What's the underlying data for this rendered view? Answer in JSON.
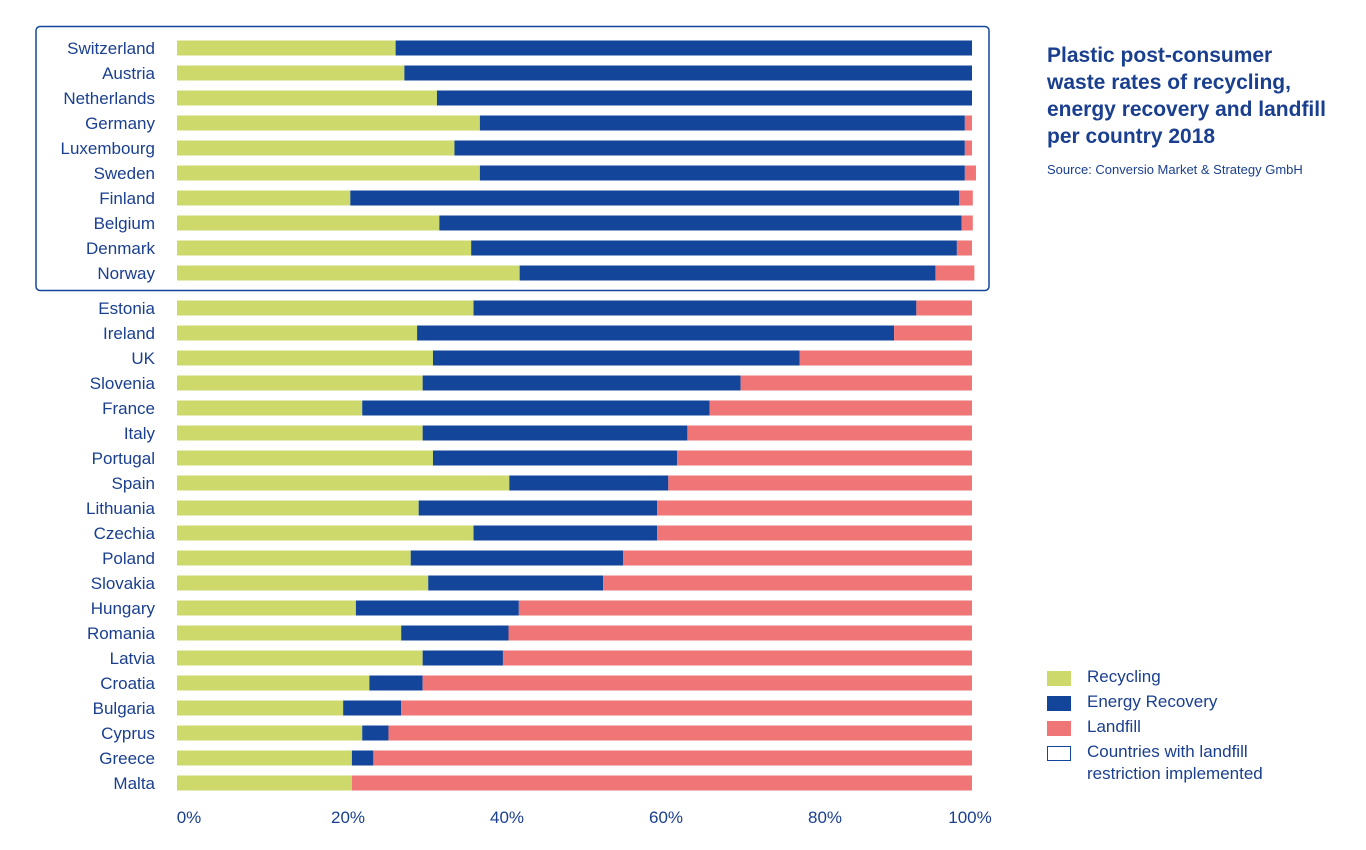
{
  "title": "Plastic post-consumer waste rates of recycling, energy recovery and landfill per country 2018",
  "source": "Source: Conversio Market & Strategy GmbH",
  "legend": {
    "recycling": "Recycling",
    "energy_recovery": "Energy Recovery",
    "landfill": "Landfill",
    "restriction": "Countries with landfill restriction implemented"
  },
  "colors": {
    "recycling": "#cdd96b",
    "energy_recovery": "#13469a",
    "landfill": "#ef7577",
    "text": "#1a3f8f",
    "restriction_box": "#13469a"
  },
  "chart_data": {
    "type": "bar",
    "orientation": "horizontal",
    "stacked": true,
    "title": "Plastic post-consumer waste rates of recycling, energy recovery and landfill per country 2018",
    "categories": [
      "Switzerland",
      "Austria",
      "Netherlands",
      "Germany",
      "Luxembourg",
      "Sweden",
      "Finland",
      "Belgium",
      "Denmark",
      "Norway",
      "Estonia",
      "Ireland",
      "UK",
      "Slovenia",
      "France",
      "Italy",
      "Portugal",
      "Spain",
      "Lithuania",
      "Czechia",
      "Poland",
      "Slovakia",
      "Hungary",
      "Romania",
      "Latvia",
      "Croatia",
      "Bulgaria",
      "Cyprus",
      "Greece",
      "Malta"
    ],
    "series": [
      {
        "name": "Recycling",
        "values": [
          27.5,
          28.6,
          32.7,
          38.1,
          34.9,
          38.1,
          21.8,
          33.0,
          37.0,
          43.1,
          37.3,
          30.2,
          32.2,
          30.9,
          23.3,
          30.9,
          32.2,
          41.8,
          30.4,
          37.3,
          29.4,
          31.6,
          22.5,
          28.2,
          30.9,
          24.2,
          20.9,
          23.3,
          22.0,
          22.0
        ]
      },
      {
        "name": "Energy Recovery",
        "values": [
          72.5,
          71.4,
          67.3,
          61.0,
          64.2,
          61.0,
          76.6,
          65.7,
          61.1,
          52.3,
          55.7,
          60.0,
          46.1,
          40.0,
          43.7,
          33.3,
          30.7,
          20.0,
          30.0,
          23.1,
          26.7,
          22.0,
          20.5,
          13.5,
          10.1,
          6.7,
          7.3,
          3.3,
          2.7,
          0.0
        ]
      },
      {
        "name": "Landfill",
        "values": [
          0.0,
          0.0,
          0.0,
          0.9,
          0.9,
          1.4,
          1.7,
          1.4,
          1.9,
          4.9,
          7.0,
          9.8,
          21.7,
          29.1,
          33.0,
          35.8,
          37.1,
          38.2,
          39.6,
          39.6,
          43.9,
          46.4,
          57.0,
          58.3,
          59.0,
          69.1,
          71.8,
          73.4,
          75.3,
          78.0
        ]
      }
    ],
    "xlim": [
      0,
      100
    ],
    "x_ticks": [
      "0%",
      "20%",
      "40%",
      "60%",
      "80%",
      "100%"
    ],
    "highlight_group": {
      "label": "Countries with landfill restriction implemented",
      "categories": [
        "Switzerland",
        "Austria",
        "Netherlands",
        "Germany",
        "Luxembourg",
        "Sweden",
        "Finland",
        "Belgium",
        "Denmark",
        "Norway"
      ]
    },
    "legend_position": "bottom-right",
    "grid": false
  }
}
